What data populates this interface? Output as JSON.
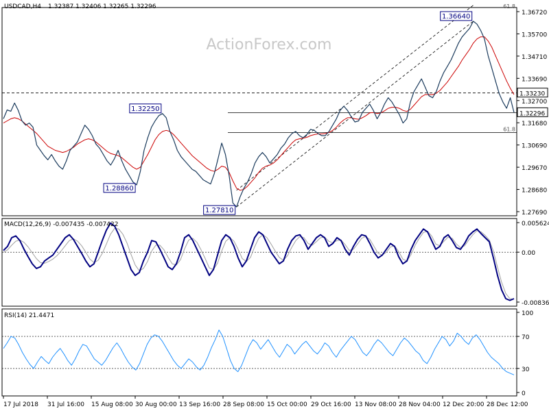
{
  "chart_data": [
    {
      "type": "line",
      "panel": "price",
      "title": "USDCAD,H4",
      "ohlc_readout": "1.32387 1.32406 1.32265 1.32296",
      "watermark": "ActionForex.com",
      "ylim": [
        1.2739,
        1.3729
      ],
      "y_ticks": [
        "1.36720",
        "1.35700",
        "1.34710",
        "1.33690",
        "1.32700",
        "1.31680",
        "1.30690",
        "1.29670",
        "1.28680",
        "1.27690"
      ],
      "x_ticks": [
        "17 Jul 2018",
        "31 Jul 16:00",
        "15 Aug 08:00",
        "30 Aug 00:00",
        "13 Sep 16:00",
        "28 Sep 08:00",
        "15 Oct 00:00",
        "29 Oct 16:00",
        "13 Nov 08:00",
        "28 Nov 04:00",
        "12 Dec 20:00",
        "28 Dec 12:00"
      ],
      "series": [
        {
          "color": "#1a3a5c",
          "values": [
            1.32,
            1.3242,
            1.3236,
            1.3275,
            1.324,
            1.319,
            1.317,
            1.318,
            1.316,
            1.3075,
            1.305,
            1.3025,
            1.3005,
            1.303,
            1.3,
            1.2975,
            1.296,
            1.3,
            1.305,
            1.307,
            1.309,
            1.313,
            1.317,
            1.315,
            1.312,
            1.308,
            1.306,
            1.303,
            1.3,
            1.298,
            1.301,
            1.305,
            1.3,
            1.296,
            1.293,
            1.29,
            1.2886,
            1.295,
            1.305,
            1.311,
            1.316,
            1.319,
            1.3215,
            1.3225,
            1.3205,
            1.314,
            1.31,
            1.305,
            1.302,
            1.3,
            1.298,
            1.296,
            1.295,
            1.293,
            1.291,
            1.29,
            1.289,
            1.294,
            1.301,
            1.3085,
            1.303,
            1.293,
            1.28,
            1.2781,
            1.283,
            1.287,
            1.29,
            1.294,
            1.299,
            1.302,
            1.304,
            1.302,
            1.299,
            1.301,
            1.303,
            1.306,
            1.308,
            1.311,
            1.313,
            1.314,
            1.312,
            1.311,
            1.3125,
            1.315,
            1.3145,
            1.313,
            1.312,
            1.312,
            1.314,
            1.317,
            1.32,
            1.324,
            1.326,
            1.324,
            1.321,
            1.3185,
            1.319,
            1.323,
            1.325,
            1.327,
            1.324,
            1.32,
            1.323,
            1.327,
            1.33,
            1.328,
            1.325,
            1.322,
            1.318,
            1.32,
            1.328,
            1.333,
            1.336,
            1.339,
            1.335,
            1.331,
            1.33,
            1.333,
            1.338,
            1.342,
            1.345,
            1.348,
            1.352,
            1.356,
            1.359,
            1.361,
            1.363,
            1.3664,
            1.365,
            1.362,
            1.358,
            1.35,
            1.344,
            1.338,
            1.332,
            1.328,
            1.325,
            1.33,
            1.323
          ]
        },
        {
          "color": "#cc0000",
          "values": [
            1.318,
            1.319,
            1.32,
            1.3205,
            1.32,
            1.319,
            1.3175,
            1.316,
            1.3145,
            1.313,
            1.311,
            1.309,
            1.307,
            1.306,
            1.305,
            1.3045,
            1.304,
            1.3045,
            1.3055,
            1.3065,
            1.308,
            1.309,
            1.31,
            1.3105,
            1.31,
            1.309,
            1.3075,
            1.306,
            1.3045,
            1.3035,
            1.303,
            1.3025,
            1.3015,
            1.3,
            1.2985,
            1.297,
            1.296,
            1.297,
            1.3,
            1.303,
            1.3065,
            1.31,
            1.3125,
            1.314,
            1.3145,
            1.314,
            1.3125,
            1.3105,
            1.3085,
            1.3065,
            1.3045,
            1.3025,
            1.301,
            1.2995,
            1.298,
            1.2965,
            1.2955,
            1.295,
            1.296,
            1.2975,
            1.297,
            1.2945,
            1.2905,
            1.287,
            1.286,
            1.2865,
            1.288,
            1.29,
            1.292,
            1.2945,
            1.2965,
            1.2975,
            1.298,
            1.299,
            1.3005,
            1.3025,
            1.3045,
            1.3065,
            1.3085,
            1.31,
            1.3105,
            1.3108,
            1.3112,
            1.312,
            1.3125,
            1.3128,
            1.3128,
            1.313,
            1.3135,
            1.3145,
            1.316,
            1.318,
            1.3195,
            1.3205,
            1.3205,
            1.32,
            1.3198,
            1.3205,
            1.3215,
            1.3228,
            1.323,
            1.3225,
            1.3228,
            1.3238,
            1.325,
            1.3255,
            1.3255,
            1.325,
            1.324,
            1.3235,
            1.3245,
            1.3265,
            1.3285,
            1.3305,
            1.3315,
            1.3315,
            1.3315,
            1.3322,
            1.3335,
            1.3355,
            1.3375,
            1.34,
            1.3425,
            1.345,
            1.348,
            1.3505,
            1.353,
            1.356,
            1.358,
            1.359,
            1.359,
            1.357,
            1.354,
            1.35,
            1.346,
            1.342,
            1.338,
            1.3345,
            1.3315
          ]
        }
      ],
      "price_tags": [
        {
          "label": "1.36640",
          "value": 1.3664
        },
        {
          "label": "1.32250",
          "value": 1.3225
        },
        {
          "label": "1.28860",
          "value": 1.2886
        },
        {
          "label": "1.27810",
          "value": 1.2781
        }
      ],
      "right_tags": [
        {
          "label": "1.33230",
          "value": 1.3323,
          "color": "#000000"
        },
        {
          "label": "1.32296",
          "value": 1.32296,
          "color": "#000000"
        }
      ],
      "fib_labels": [
        {
          "label": "61.8",
          "value": 1.3729
        },
        {
          "label": "61.8",
          "value": 1.3135
        }
      ],
      "hlines": [
        {
          "value": 1.3323,
          "style": "dashed"
        },
        {
          "value": 1.32296,
          "style": "solid"
        },
        {
          "value": 1.3135,
          "style": "solid"
        }
      ]
    },
    {
      "type": "line",
      "panel": "macd",
      "title": "MACD(12,26,9) -0.007435 -0.007422",
      "ylim": [
        -0.0093,
        0.0058
      ],
      "y_ticks": [
        "0.005624",
        "0.00",
        "-0.00836"
      ],
      "series": [
        {
          "color": "#000080",
          "values": [
            0.0003,
            0.001,
            0.0025,
            0.0028,
            0.002,
            0.0005,
            -0.0008,
            -0.002,
            -0.0028,
            -0.0025,
            -0.0015,
            -0.001,
            -0.0005,
            0.0005,
            0.0015,
            0.0025,
            0.003,
            0.0022,
            0.001,
            -0.0002,
            -0.0015,
            -0.0025,
            -0.002,
            0.0,
            0.002,
            0.0038,
            0.005,
            0.0045,
            0.003,
            0.001,
            -0.001,
            -0.003,
            -0.004,
            -0.0035,
            -0.0015,
            0.0,
            0.002,
            0.0018,
            0.0005,
            -0.001,
            -0.0025,
            -0.003,
            -0.002,
            0.0,
            0.0025,
            0.003,
            0.002,
            0.0005,
            -0.001,
            -0.0025,
            -0.004,
            -0.003,
            -0.0005,
            0.002,
            0.003,
            0.0025,
            0.001,
            -0.001,
            -0.0025,
            -0.0015,
            0.0005,
            0.0025,
            0.0035,
            0.003,
            0.0015,
            0.0,
            -0.001,
            -0.002,
            -0.0015,
            0.0005,
            0.002,
            0.0028,
            0.003,
            0.002,
            0.0005,
            0.0015,
            0.0025,
            0.003,
            0.0025,
            0.001,
            0.0015,
            0.0025,
            0.002,
            0.0005,
            -0.0005,
            0.001,
            0.0022,
            0.003,
            0.0028,
            0.0015,
            0.0,
            -0.001,
            -0.0005,
            0.0005,
            0.0015,
            0.001,
            -0.0008,
            -0.002,
            -0.0015,
            0.0005,
            0.002,
            0.003,
            0.004,
            0.0035,
            0.002,
            0.0005,
            0.001,
            0.0025,
            0.003,
            0.002,
            0.0008,
            0.0005,
            0.0015,
            0.0028,
            0.0035,
            0.004,
            0.0032,
            0.0025,
            0.0018,
            -0.001,
            -0.004,
            -0.0065,
            -0.008,
            -0.0083,
            -0.008
          ]
        },
        {
          "color": "#a0a0a0",
          "values": [
            0.0,
            0.0004,
            0.0012,
            0.0019,
            0.0021,
            0.0017,
            0.0009,
            -0.0001,
            -0.0011,
            -0.0018,
            -0.0019,
            -0.0016,
            -0.0012,
            -0.0006,
            0.0002,
            0.0011,
            0.002,
            0.0023,
            0.0019,
            0.0011,
            0.0,
            -0.0012,
            -0.0018,
            -0.0014,
            -0.0002,
            0.0014,
            0.0031,
            0.0041,
            0.004,
            0.0031,
            0.0016,
            -0.0004,
            -0.0022,
            -0.0032,
            -0.0028,
            -0.0016,
            0.0002,
            0.0012,
            0.0012,
            0.0004,
            -0.0009,
            -0.002,
            -0.0022,
            -0.0013,
            0.0006,
            0.0021,
            0.0024,
            0.0017,
            0.0004,
            -0.0011,
            -0.0027,
            -0.003,
            -0.0019,
            0.0002,
            0.0019,
            0.0025,
            0.0019,
            0.0005,
            -0.0011,
            -0.0016,
            -0.0009,
            0.0009,
            0.0024,
            0.003,
            0.0025,
            0.0014,
            0.0002,
            -0.0009,
            -0.0014,
            -0.0006,
            0.0008,
            0.002,
            0.0027,
            0.0025,
            0.0015,
            0.0012,
            0.0018,
            0.0025,
            0.0026,
            0.0019,
            0.0016,
            0.002,
            0.0021,
            0.0013,
            0.0003,
            0.0005,
            0.0014,
            0.0024,
            0.0027,
            0.0022,
            0.001,
            -0.0002,
            -0.0005,
            0.0,
            0.0009,
            0.0011,
            0.0001,
            -0.0012,
            -0.0015,
            -0.0004,
            0.0012,
            0.0024,
            0.0034,
            0.0036,
            0.0028,
            0.0014,
            0.0011,
            0.0019,
            0.0026,
            0.0024,
            0.0014,
            0.0008,
            0.0011,
            0.0021,
            0.003,
            0.0037,
            0.0035,
            0.0029,
            0.0021,
            0.0002,
            -0.0026,
            -0.0052,
            -0.0071,
            -0.008,
            -0.0081
          ]
        }
      ]
    },
    {
      "type": "line",
      "panel": "rsi",
      "title": "RSI(14) 21.4471",
      "ylim": [
        0,
        100
      ],
      "y_ticks": [
        "100",
        "70",
        "30",
        "0"
      ],
      "levels": [
        70,
        30
      ],
      "series": [
        {
          "color": "#1e90ff",
          "values": [
            55,
            62,
            70,
            68,
            60,
            50,
            42,
            35,
            30,
            38,
            45,
            40,
            36,
            44,
            50,
            55,
            48,
            40,
            34,
            42,
            52,
            60,
            58,
            50,
            42,
            38,
            34,
            40,
            48,
            56,
            62,
            55,
            46,
            38,
            32,
            28,
            36,
            48,
            60,
            68,
            72,
            70,
            64,
            56,
            48,
            40,
            34,
            30,
            36,
            42,
            38,
            32,
            28,
            34,
            44,
            56,
            66,
            78,
            70,
            55,
            40,
            30,
            26,
            34,
            46,
            58,
            66,
            62,
            54,
            60,
            66,
            58,
            50,
            44,
            52,
            60,
            56,
            48,
            54,
            60,
            64,
            58,
            52,
            48,
            54,
            62,
            58,
            50,
            44,
            52,
            58,
            64,
            70,
            66,
            58,
            50,
            46,
            52,
            60,
            66,
            62,
            56,
            50,
            46,
            54,
            62,
            68,
            64,
            58,
            52,
            48,
            40,
            36,
            44,
            54,
            62,
            70,
            66,
            58,
            64,
            74,
            70,
            64,
            60,
            68,
            72,
            66,
            58,
            50,
            44,
            40,
            36,
            30,
            26,
            24,
            22
          ]
        }
      ]
    }
  ]
}
